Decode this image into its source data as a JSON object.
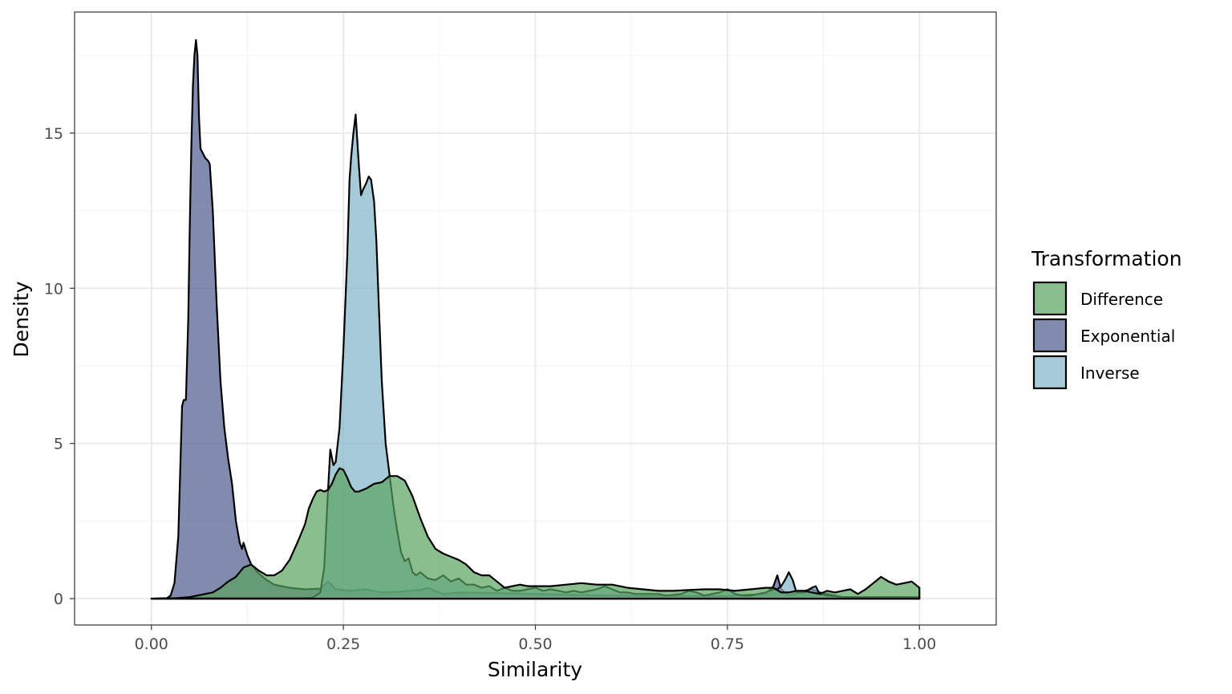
{
  "chart_data": {
    "type": "area",
    "title": "",
    "xlabel": "Similarity",
    "ylabel": "Density",
    "xlim": [
      -0.1,
      1.1
    ],
    "ylim": [
      -0.85,
      18.9
    ],
    "x_ticks": [
      0.0,
      0.25,
      0.5,
      0.75,
      1.0
    ],
    "x_tick_labels": [
      "0.00",
      "0.25",
      "0.50",
      "0.75",
      "1.00"
    ],
    "y_ticks": [
      0,
      5,
      10,
      15
    ],
    "y_tick_labels": [
      "0",
      "5",
      "10",
      "15"
    ],
    "grid": true,
    "legend": {
      "title": "Transformation",
      "position": "right"
    },
    "series": [
      {
        "name": "Exponential",
        "color": "#4b5a8c",
        "points": [
          [
            0.0,
            0
          ],
          [
            0.02,
            0.01
          ],
          [
            0.025,
            0.1
          ],
          [
            0.03,
            0.5
          ],
          [
            0.035,
            2.0
          ],
          [
            0.038,
            4.5
          ],
          [
            0.04,
            6.2
          ],
          [
            0.042,
            6.4
          ],
          [
            0.045,
            6.4
          ],
          [
            0.048,
            9.0
          ],
          [
            0.05,
            12.0
          ],
          [
            0.052,
            14.5
          ],
          [
            0.054,
            16.5
          ],
          [
            0.056,
            17.5
          ],
          [
            0.058,
            18.0
          ],
          [
            0.06,
            17.5
          ],
          [
            0.062,
            15.5
          ],
          [
            0.064,
            14.5
          ],
          [
            0.066,
            14.4
          ],
          [
            0.07,
            14.2
          ],
          [
            0.074,
            14.1
          ],
          [
            0.076,
            14.0
          ],
          [
            0.08,
            12.5
          ],
          [
            0.085,
            9.5
          ],
          [
            0.09,
            7.0
          ],
          [
            0.095,
            5.5
          ],
          [
            0.1,
            4.5
          ],
          [
            0.105,
            3.7
          ],
          [
            0.11,
            2.5
          ],
          [
            0.115,
            1.8
          ],
          [
            0.118,
            1.6
          ],
          [
            0.12,
            1.8
          ],
          [
            0.125,
            1.4
          ],
          [
            0.13,
            1.1
          ],
          [
            0.14,
            0.8
          ],
          [
            0.15,
            0.6
          ],
          [
            0.16,
            0.45
          ],
          [
            0.18,
            0.35
          ],
          [
            0.2,
            0.3
          ],
          [
            0.22,
            0.32
          ],
          [
            0.23,
            0.55
          ],
          [
            0.24,
            0.3
          ],
          [
            0.26,
            0.25
          ],
          [
            0.28,
            0.3
          ],
          [
            0.3,
            0.2
          ],
          [
            0.32,
            0.22
          ],
          [
            0.35,
            0.28
          ],
          [
            0.36,
            0.35
          ],
          [
            0.38,
            0.15
          ],
          [
            0.4,
            0.2
          ],
          [
            0.45,
            0.18
          ],
          [
            0.5,
            0.15
          ],
          [
            0.55,
            0.12
          ],
          [
            0.6,
            0.1
          ],
          [
            0.65,
            0.08
          ],
          [
            0.7,
            0.08
          ],
          [
            0.75,
            0.08
          ],
          [
            0.8,
            0.15
          ],
          [
            0.81,
            0.4
          ],
          [
            0.815,
            0.75
          ],
          [
            0.82,
            0.3
          ],
          [
            0.83,
            0.1
          ],
          [
            0.85,
            0.25
          ],
          [
            0.86,
            0.3
          ],
          [
            0.87,
            0.2
          ],
          [
            0.9,
            0.05
          ],
          [
            0.95,
            0.05
          ],
          [
            1.0,
            0.05
          ]
        ]
      },
      {
        "name": "Inverse",
        "color": "#7fb3c7",
        "points": [
          [
            0.0,
            0
          ],
          [
            0.05,
            0.02
          ],
          [
            0.1,
            0.02
          ],
          [
            0.15,
            0.02
          ],
          [
            0.2,
            0.02
          ],
          [
            0.21,
            0.03
          ],
          [
            0.22,
            0.2
          ],
          [
            0.225,
            1.0
          ],
          [
            0.23,
            3.5
          ],
          [
            0.233,
            4.8
          ],
          [
            0.237,
            4.3
          ],
          [
            0.24,
            4.4
          ],
          [
            0.245,
            5.5
          ],
          [
            0.25,
            8.0
          ],
          [
            0.255,
            11.0
          ],
          [
            0.258,
            13.5
          ],
          [
            0.26,
            14.2
          ],
          [
            0.263,
            15.0
          ],
          [
            0.266,
            15.6
          ],
          [
            0.27,
            14.0
          ],
          [
            0.273,
            13.0
          ],
          [
            0.276,
            13.2
          ],
          [
            0.28,
            13.4
          ],
          [
            0.283,
            13.6
          ],
          [
            0.286,
            13.5
          ],
          [
            0.29,
            12.8
          ],
          [
            0.293,
            11.5
          ],
          [
            0.296,
            9.5
          ],
          [
            0.3,
            7.0
          ],
          [
            0.305,
            5.0
          ],
          [
            0.31,
            4.0
          ],
          [
            0.315,
            3.0
          ],
          [
            0.32,
            2.2
          ],
          [
            0.325,
            1.5
          ],
          [
            0.33,
            1.2
          ],
          [
            0.335,
            1.3
          ],
          [
            0.34,
            0.85
          ],
          [
            0.345,
            0.75
          ],
          [
            0.35,
            0.85
          ],
          [
            0.36,
            0.65
          ],
          [
            0.37,
            0.6
          ],
          [
            0.38,
            0.75
          ],
          [
            0.39,
            0.55
          ],
          [
            0.4,
            0.65
          ],
          [
            0.41,
            0.45
          ],
          [
            0.42,
            0.45
          ],
          [
            0.43,
            0.35
          ],
          [
            0.44,
            0.4
          ],
          [
            0.45,
            0.25
          ],
          [
            0.46,
            0.35
          ],
          [
            0.47,
            0.25
          ],
          [
            0.48,
            0.25
          ],
          [
            0.49,
            0.3
          ],
          [
            0.5,
            0.35
          ],
          [
            0.51,
            0.25
          ],
          [
            0.52,
            0.3
          ],
          [
            0.53,
            0.25
          ],
          [
            0.54,
            0.2
          ],
          [
            0.55,
            0.25
          ],
          [
            0.56,
            0.2
          ],
          [
            0.57,
            0.25
          ],
          [
            0.58,
            0.3
          ],
          [
            0.59,
            0.4
          ],
          [
            0.6,
            0.3
          ],
          [
            0.61,
            0.2
          ],
          [
            0.62,
            0.2
          ],
          [
            0.63,
            0.15
          ],
          [
            0.64,
            0.15
          ],
          [
            0.65,
            0.15
          ],
          [
            0.66,
            0.15
          ],
          [
            0.67,
            0.1
          ],
          [
            0.68,
            0.12
          ],
          [
            0.69,
            0.15
          ],
          [
            0.7,
            0.25
          ],
          [
            0.71,
            0.2
          ],
          [
            0.72,
            0.1
          ],
          [
            0.73,
            0.15
          ],
          [
            0.74,
            0.2
          ],
          [
            0.75,
            0.3
          ],
          [
            0.76,
            0.15
          ],
          [
            0.77,
            0.1
          ],
          [
            0.78,
            0.1
          ],
          [
            0.79,
            0.15
          ],
          [
            0.8,
            0.2
          ],
          [
            0.81,
            0.3
          ],
          [
            0.815,
            0.3
          ],
          [
            0.82,
            0.4
          ],
          [
            0.825,
            0.6
          ],
          [
            0.83,
            0.85
          ],
          [
            0.835,
            0.6
          ],
          [
            0.84,
            0.2
          ],
          [
            0.85,
            0.2
          ],
          [
            0.86,
            0.35
          ],
          [
            0.865,
            0.4
          ],
          [
            0.87,
            0.15
          ],
          [
            0.88,
            0.1
          ],
          [
            0.9,
            0.05
          ],
          [
            0.95,
            0.03
          ],
          [
            1.0,
            0.02
          ]
        ]
      },
      {
        "name": "Difference",
        "color": "#5aa260",
        "points": [
          [
            0.0,
            0
          ],
          [
            0.03,
            0.01
          ],
          [
            0.05,
            0.05
          ],
          [
            0.07,
            0.15
          ],
          [
            0.08,
            0.2
          ],
          [
            0.09,
            0.35
          ],
          [
            0.1,
            0.55
          ],
          [
            0.11,
            0.7
          ],
          [
            0.12,
            1.0
          ],
          [
            0.13,
            1.1
          ],
          [
            0.14,
            0.9
          ],
          [
            0.15,
            0.75
          ],
          [
            0.16,
            0.75
          ],
          [
            0.17,
            0.9
          ],
          [
            0.18,
            1.25
          ],
          [
            0.19,
            1.8
          ],
          [
            0.2,
            2.4
          ],
          [
            0.205,
            2.9
          ],
          [
            0.21,
            3.2
          ],
          [
            0.215,
            3.45
          ],
          [
            0.22,
            3.5
          ],
          [
            0.225,
            3.45
          ],
          [
            0.23,
            3.5
          ],
          [
            0.235,
            3.7
          ],
          [
            0.24,
            4.0
          ],
          [
            0.245,
            4.2
          ],
          [
            0.25,
            4.15
          ],
          [
            0.255,
            3.9
          ],
          [
            0.26,
            3.6
          ],
          [
            0.265,
            3.45
          ],
          [
            0.27,
            3.45
          ],
          [
            0.28,
            3.55
          ],
          [
            0.29,
            3.7
          ],
          [
            0.3,
            3.75
          ],
          [
            0.305,
            3.85
          ],
          [
            0.31,
            3.95
          ],
          [
            0.315,
            3.95
          ],
          [
            0.32,
            3.95
          ],
          [
            0.33,
            3.8
          ],
          [
            0.34,
            3.3
          ],
          [
            0.35,
            2.6
          ],
          [
            0.36,
            2.0
          ],
          [
            0.37,
            1.6
          ],
          [
            0.38,
            1.45
          ],
          [
            0.39,
            1.35
          ],
          [
            0.4,
            1.25
          ],
          [
            0.41,
            1.1
          ],
          [
            0.42,
            0.85
          ],
          [
            0.43,
            0.75
          ],
          [
            0.44,
            0.75
          ],
          [
            0.45,
            0.55
          ],
          [
            0.46,
            0.35
          ],
          [
            0.47,
            0.4
          ],
          [
            0.48,
            0.45
          ],
          [
            0.49,
            0.4
          ],
          [
            0.5,
            0.4
          ],
          [
            0.52,
            0.4
          ],
          [
            0.54,
            0.45
          ],
          [
            0.56,
            0.5
          ],
          [
            0.58,
            0.45
          ],
          [
            0.6,
            0.45
          ],
          [
            0.62,
            0.35
          ],
          [
            0.64,
            0.3
          ],
          [
            0.66,
            0.25
          ],
          [
            0.68,
            0.25
          ],
          [
            0.7,
            0.28
          ],
          [
            0.72,
            0.3
          ],
          [
            0.74,
            0.3
          ],
          [
            0.76,
            0.25
          ],
          [
            0.78,
            0.3
          ],
          [
            0.8,
            0.35
          ],
          [
            0.81,
            0.35
          ],
          [
            0.82,
            0.2
          ],
          [
            0.83,
            0.2
          ],
          [
            0.84,
            0.25
          ],
          [
            0.85,
            0.25
          ],
          [
            0.86,
            0.2
          ],
          [
            0.87,
            0.15
          ],
          [
            0.88,
            0.25
          ],
          [
            0.89,
            0.2
          ],
          [
            0.9,
            0.25
          ],
          [
            0.91,
            0.3
          ],
          [
            0.92,
            0.15
          ],
          [
            0.93,
            0.3
          ],
          [
            0.94,
            0.5
          ],
          [
            0.95,
            0.7
          ],
          [
            0.96,
            0.55
          ],
          [
            0.97,
            0.45
          ],
          [
            0.98,
            0.5
          ],
          [
            0.99,
            0.55
          ],
          [
            0.995,
            0.45
          ],
          [
            1.0,
            0.35
          ]
        ]
      }
    ]
  }
}
